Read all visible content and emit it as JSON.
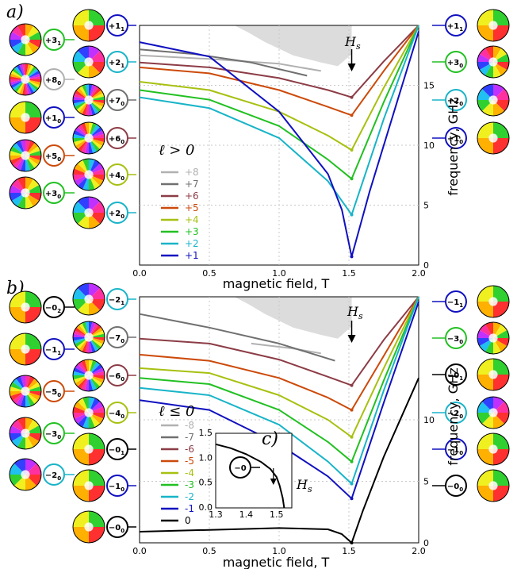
{
  "colors": {
    "+8": "#b0b0b0",
    "+7": "#707070",
    "+6": "#8c3c46",
    "+5": "#cc4a0a",
    "+4": "#a8c010",
    "+3": "#22c022",
    "+2": "#18b4c8",
    "+1": "#1010c0",
    "-8": "#b0b0b0",
    "-7": "#707070",
    "-6": "#8c3c46",
    "-5": "#cc4a0a",
    "-4": "#a8c010",
    "-3": "#22c022",
    "-2": "#18b4c8",
    "-1": "#1010c0",
    "0": "#000000",
    "saturation_region": "#dcdcdc"
  },
  "panel_a": {
    "label": "a)",
    "hs_label": "H",
    "hs_sub": "s",
    "x_ticks": [
      "0.0",
      "0.5",
      "1.0",
      "1.5",
      "2.0"
    ],
    "y_ticks": [
      "0",
      "5",
      "10",
      "15"
    ],
    "xlabel": "magnetic field, T",
    "ylabel": "frequency, GHz",
    "legend_title": "ℓ > 0",
    "legend": [
      "+8",
      "+7",
      "+6",
      "+5",
      "+4",
      "+3",
      "+2",
      "+1"
    ],
    "left_modes": [
      "+3",
      "+8",
      "+1",
      "+5",
      "+3",
      "+1",
      "+2",
      "+7",
      "+6",
      "+4",
      "+2"
    ],
    "left_subs": [
      "1",
      "0",
      "0",
      "0",
      "0",
      "1",
      "1",
      "0",
      "0",
      "0",
      "0"
    ],
    "right_modes": [
      "+1",
      "+3",
      "+2",
      "+1"
    ],
    "right_subs": [
      "1",
      "0",
      "0",
      "0"
    ]
  },
  "panel_b": {
    "label": "b)",
    "hs_label": "H",
    "hs_sub": "s",
    "x_ticks": [
      "0.0",
      "0.5",
      "1.0",
      "1.5",
      "2.0"
    ],
    "y_ticks": [
      "0",
      "5",
      "10"
    ],
    "xlabel": "magnetic field, T",
    "ylabel": "frequency, GHz",
    "legend_title": "ℓ ≤ 0",
    "legend": [
      "-8",
      "-7",
      "-6",
      "-5",
      "-4",
      "-3",
      "-2",
      "-1",
      "0"
    ],
    "left_modes": [
      "−0",
      "−1",
      "−5",
      "−3",
      "−2",
      "−2",
      "−7",
      "−6",
      "−4",
      "−0",
      "−1",
      "−0"
    ],
    "left_subs": [
      "2",
      "1",
      "0",
      "0",
      "0",
      "1",
      "0",
      "0",
      "0",
      "1",
      "0",
      "0"
    ],
    "right_modes": [
      "−1",
      "−3",
      "−0",
      "−2",
      "−1",
      "−0"
    ],
    "right_subs": [
      "1",
      "0",
      "1",
      "0",
      "0",
      "0"
    ]
  },
  "panel_c": {
    "label": "c)",
    "hs_label": "H",
    "hs_sub": "s",
    "x_ticks": [
      "1.3",
      "1.4",
      "1.5"
    ],
    "y_ticks": [
      "0.0",
      "0.5",
      "1.0",
      "1.5"
    ],
    "mode": "−0",
    "mode_sub": "0"
  },
  "chart_data": [
    {
      "type": "line",
      "xlabel": "magnetic field, T",
      "ylabel": "frequency, GHz",
      "xlim": [
        0,
        2
      ],
      "ylim": [
        0,
        20
      ],
      "grid": true,
      "legend_title": "ℓ > 0",
      "legend_position": "lower-left",
      "annotation": "Hs at 1.52 T",
      "series": [
        {
          "name": "+8",
          "x": [
            0,
            0.5,
            1.0,
            1.3
          ],
          "y": [
            17.5,
            17.2,
            16.8,
            16.2
          ]
        },
        {
          "name": "+7",
          "x": [
            0,
            0.4,
            0.8,
            1.2
          ],
          "y": [
            18.0,
            17.6,
            16.9,
            15.8
          ]
        },
        {
          "name": "+6",
          "x": [
            0,
            0.5,
            1.0,
            1.35,
            1.52,
            1.75,
            2.0
          ],
          "y": [
            16.9,
            16.5,
            15.6,
            14.6,
            14.0,
            17.0,
            20.0
          ]
        },
        {
          "name": "+5",
          "x": [
            0,
            0.5,
            1.0,
            1.35,
            1.52,
            1.75,
            2.0
          ],
          "y": [
            16.5,
            16.0,
            14.6,
            13.2,
            12.5,
            16.2,
            20.0
          ]
        },
        {
          "name": "+4",
          "x": [
            0,
            0.5,
            1.0,
            1.35,
            1.52,
            1.75,
            2.0
          ],
          "y": [
            15.3,
            14.6,
            12.8,
            10.8,
            9.6,
            14.8,
            20.0
          ]
        },
        {
          "name": "+3",
          "x": [
            0,
            0.5,
            1.0,
            1.35,
            1.52,
            1.75,
            2.0
          ],
          "y": [
            14.6,
            13.8,
            11.6,
            8.8,
            7.2,
            13.6,
            20.0
          ]
        },
        {
          "name": "+2",
          "x": [
            0,
            0.5,
            1.0,
            1.35,
            1.52,
            1.75,
            2.0
          ],
          "y": [
            14.0,
            13.1,
            10.6,
            7.0,
            4.2,
            12.2,
            20.0
          ]
        },
        {
          "name": "+1",
          "x": [
            0,
            0.5,
            1.0,
            1.35,
            1.45,
            1.52,
            1.65,
            1.85,
            2.0
          ],
          "y": [
            18.6,
            17.4,
            12.8,
            7.6,
            4.6,
            0.7,
            6.2,
            13.8,
            19.5
          ]
        }
      ]
    },
    {
      "type": "line",
      "xlabel": "magnetic field, T",
      "ylabel": "frequency, GHz",
      "xlim": [
        0,
        2
      ],
      "ylim": [
        0,
        20
      ],
      "grid": true,
      "legend_title": "ℓ ≤ 0",
      "legend_position": "lower-left",
      "annotation": "Hs at 1.52 T",
      "series": [
        {
          "name": "-8",
          "x": [
            0.8,
            1.1,
            1.3
          ],
          "y": [
            16.2,
            15.8,
            15.4
          ]
        },
        {
          "name": "-7",
          "x": [
            0,
            0.5,
            1.0,
            1.4
          ],
          "y": [
            18.6,
            17.5,
            16.2,
            14.8
          ]
        },
        {
          "name": "-6",
          "x": [
            0,
            0.5,
            1.0,
            1.35,
            1.52,
            1.75,
            2.0
          ],
          "y": [
            16.6,
            16.2,
            14.9,
            13.5,
            12.8,
            16.5,
            20.0
          ]
        },
        {
          "name": "-5",
          "x": [
            0,
            0.5,
            1.0,
            1.35,
            1.52,
            1.75,
            2.0
          ],
          "y": [
            15.3,
            14.8,
            13.4,
            11.8,
            10.8,
            15.2,
            20.0
          ]
        },
        {
          "name": "-4",
          "x": [
            0,
            0.5,
            1.0,
            1.35,
            1.52,
            1.75,
            2.0
          ],
          "y": [
            14.2,
            13.8,
            12.0,
            10.0,
            8.6,
            14.2,
            20.0
          ]
        },
        {
          "name": "-3",
          "x": [
            0,
            0.5,
            1.0,
            1.35,
            1.52,
            1.75,
            2.0
          ],
          "y": [
            13.4,
            12.9,
            10.8,
            8.2,
            6.6,
            13.2,
            20.0
          ]
        },
        {
          "name": "-2",
          "x": [
            0,
            0.5,
            1.0,
            1.35,
            1.52,
            1.75,
            2.0
          ],
          "y": [
            12.6,
            12.0,
            9.6,
            6.6,
            4.8,
            12.4,
            20.0
          ]
        },
        {
          "name": "-1",
          "x": [
            0,
            0.5,
            1.0,
            1.35,
            1.52,
            1.75,
            2.0
          ],
          "y": [
            11.6,
            10.8,
            8.0,
            5.4,
            3.6,
            11.4,
            19.6
          ]
        },
        {
          "name": "0",
          "x": [
            0,
            0.5,
            1.0,
            1.35,
            1.45,
            1.52,
            1.6,
            1.75,
            2.0
          ],
          "y": [
            0.9,
            1.05,
            1.2,
            1.1,
            0.7,
            0.0,
            2.6,
            7.0,
            13.4
          ]
        }
      ]
    },
    {
      "type": "line",
      "xlim": [
        1.3,
        1.55
      ],
      "ylim": [
        0,
        1.5
      ],
      "grid": false,
      "annotation": "Hs",
      "series": [
        {
          "x": [
            1.3,
            1.35,
            1.4,
            1.45,
            1.48,
            1.5,
            1.51,
            1.52,
            1.525
          ],
          "y": [
            1.28,
            1.2,
            1.08,
            0.92,
            0.78,
            0.62,
            0.45,
            0.2,
            0.0
          ]
        }
      ]
    }
  ]
}
